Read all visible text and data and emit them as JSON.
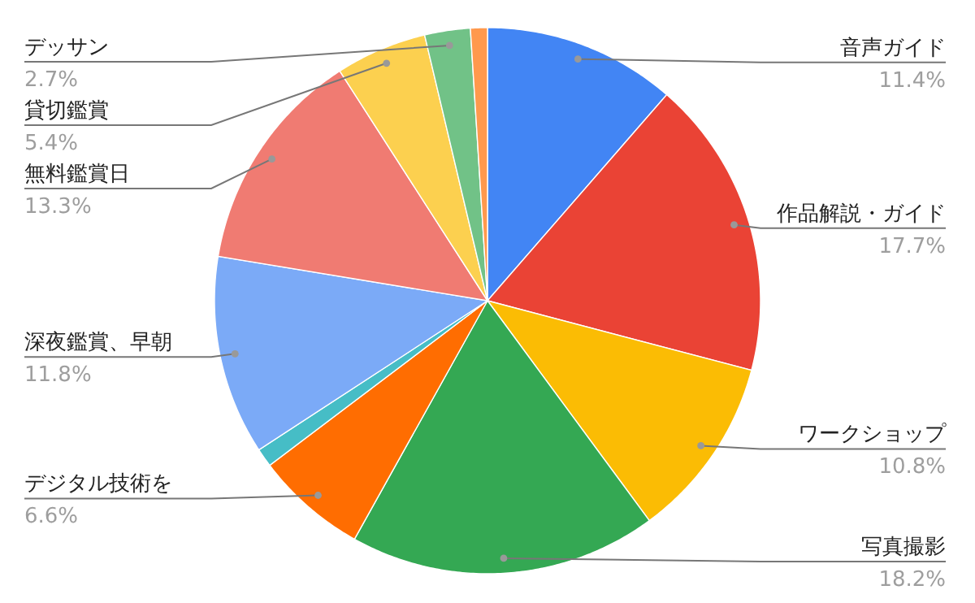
{
  "chart_data": {
    "type": "pie",
    "categories": [
      "音声ガイド",
      "作品解説・ガイド",
      "ワークショップ",
      "写真撮影",
      "デジタル技術を",
      null,
      "深夜鑑賞、早朝",
      "無料鑑賞日",
      "貸切鑑賞",
      "デッサン",
      null
    ],
    "values": [
      11.4,
      17.7,
      10.8,
      18.2,
      6.6,
      1.1,
      11.8,
      13.3,
      5.4,
      2.7,
      1.0
    ],
    "value_labels": [
      "11.4%",
      "17.7%",
      "10.8%",
      "18.2%",
      "6.6%",
      null,
      "11.8%",
      "13.3%",
      "5.4%",
      "2.7%",
      null
    ],
    "colors": [
      "#4285f4",
      "#ea4335",
      "#fbbc04",
      "#34a853",
      "#ff6d01",
      "#46bdc6",
      "#7baaf7",
      "#f07b72",
      "#fcd04f",
      "#71c287",
      "#ff994d"
    ]
  }
}
